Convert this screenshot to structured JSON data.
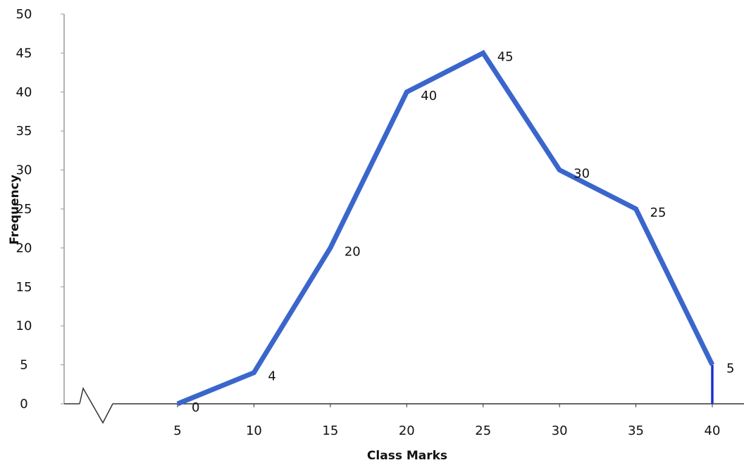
{
  "chart_data": {
    "type": "line",
    "title": "",
    "xlabel": "Class Marks",
    "ylabel": "Frequency",
    "x": [
      5,
      10,
      15,
      20,
      25,
      30,
      35,
      40
    ],
    "x_tick_labels": [
      "5",
      "10",
      "15",
      "20",
      "25",
      "30",
      "35",
      "40"
    ],
    "y_tick_labels": [
      "0",
      "5",
      "10",
      "15",
      "20",
      "25",
      "30",
      "35",
      "40",
      "45",
      "50"
    ],
    "ylim": [
      0,
      50
    ],
    "grid": false,
    "axis_break": true,
    "series": [
      {
        "values": [
          0,
          4,
          20,
          40,
          45,
          30,
          25,
          5
        ],
        "data_labels": [
          "0",
          "4",
          "20",
          "40",
          "45",
          "30",
          "25",
          "5"
        ],
        "color": "#3a66cc"
      }
    ],
    "drop_line": {
      "x": 40,
      "from": 5,
      "to": 0,
      "color": "#1f2fcf"
    }
  }
}
